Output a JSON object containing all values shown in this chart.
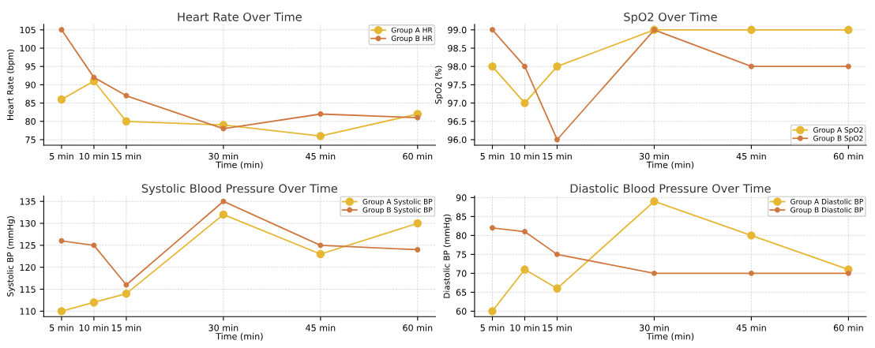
{
  "chart_data": [
    {
      "type": "line",
      "title": "Heart Rate Over Time",
      "xlabel": "Time (min)",
      "ylabel": "Heart Rate (bpm)",
      "x": [
        5,
        10,
        15,
        30,
        45,
        60
      ],
      "series": [
        {
          "name": "Group A HR",
          "color": "#e6b733",
          "values": [
            86,
            91,
            80,
            79,
            76,
            82
          ]
        },
        {
          "name": "Group B HR",
          "color": "#cf7840",
          "values": [
            105,
            92,
            87,
            78,
            82,
            81
          ]
        }
      ],
      "xlim": [
        2.25,
        62.75
      ],
      "xticks": [
        {
          "value": 5,
          "label": "5 min"
        },
        {
          "value": 10,
          "label": "10 min"
        },
        {
          "value": 15,
          "label": "15 min"
        },
        {
          "value": 30,
          "label": "30 min"
        },
        {
          "value": 45,
          "label": "45 min"
        },
        {
          "value": 60,
          "label": "60 min"
        }
      ],
      "ylim": [
        73.5,
        106.5
      ],
      "yticks": [
        75,
        80,
        85,
        90,
        95,
        100,
        105
      ],
      "grid": true,
      "legend": "top right",
      "marker": "circle",
      "line_style": "solid"
    },
    {
      "type": "line",
      "title": "SpO2 Over Time",
      "xlabel": "Time (min)",
      "ylabel": "SpO2 (%)",
      "x": [
        5,
        10,
        15,
        30,
        45,
        60
      ],
      "series": [
        {
          "name": "Group A SpO2",
          "color": "#e6b733",
          "values": [
            98.0,
            97.0,
            98.0,
            99.0,
            99.0,
            99.0
          ]
        },
        {
          "name": "Group B SpO2",
          "color": "#cf7840",
          "values": [
            99.0,
            98.0,
            96.0,
            99.0,
            98.0,
            98.0
          ]
        }
      ],
      "xlim": [
        2.25,
        62.75
      ],
      "xticks": [
        {
          "value": 5,
          "label": "5 min"
        },
        {
          "value": 10,
          "label": "10 min"
        },
        {
          "value": 15,
          "label": "15 min"
        },
        {
          "value": 30,
          "label": "30 min"
        },
        {
          "value": 45,
          "label": "45 min"
        },
        {
          "value": 60,
          "label": "60 min"
        }
      ],
      "ylim": [
        95.85,
        99.15
      ],
      "yticks": [
        {
          "value": 96,
          "label": "96.0"
        },
        {
          "value": 96.5,
          "label": "96.5"
        },
        {
          "value": 97,
          "label": "97.0"
        },
        {
          "value": 97.5,
          "label": "97.5"
        },
        {
          "value": 98,
          "label": "98.0"
        },
        {
          "value": 98.5,
          "label": "98.5"
        },
        {
          "value": 99,
          "label": "99.0"
        }
      ],
      "grid": true,
      "legend": "bottom right",
      "marker": "circle",
      "line_style": "solid"
    },
    {
      "type": "line",
      "title": "Systolic Blood Pressure Over Time",
      "xlabel": "Time (min)",
      "ylabel": "Systolic BP (mmHg)",
      "x": [
        5,
        10,
        15,
        30,
        45,
        60
      ],
      "series": [
        {
          "name": "Group A Systolic BP",
          "color": "#e6b733",
          "values": [
            110,
            112,
            114,
            132,
            123,
            130
          ]
        },
        {
          "name": "Group B Systolic BP",
          "color": "#cf7840",
          "values": [
            126,
            125,
            116,
            135,
            125,
            124
          ]
        }
      ],
      "xlim": [
        2.25,
        62.75
      ],
      "xticks": [
        {
          "value": 5,
          "label": "5 min"
        },
        {
          "value": 10,
          "label": "10 min"
        },
        {
          "value": 15,
          "label": "15 min"
        },
        {
          "value": 30,
          "label": "30 min"
        },
        {
          "value": 45,
          "label": "45 min"
        },
        {
          "value": 60,
          "label": "60 min"
        }
      ],
      "ylim": [
        108.75,
        136.25
      ],
      "yticks": [
        110,
        115,
        120,
        125,
        130,
        135
      ],
      "grid": true,
      "legend": "top right",
      "marker": "circle",
      "line_style": "solid"
    },
    {
      "type": "line",
      "title": "Diastolic Blood Pressure Over Time",
      "xlabel": "Time (min)",
      "ylabel": "Diastolic BP (mmHg)",
      "x": [
        5,
        10,
        15,
        30,
        45,
        60
      ],
      "series": [
        {
          "name": "Group A Diastolic BP",
          "color": "#e6b733",
          "values": [
            60,
            71,
            66,
            89,
            80,
            71
          ]
        },
        {
          "name": "Group B Diastolic BP",
          "color": "#cf7840",
          "values": [
            82,
            81,
            75,
            70,
            70,
            70
          ]
        }
      ],
      "xlim": [
        2.25,
        62.75
      ],
      "xticks": [
        {
          "value": 5,
          "label": "5 min"
        },
        {
          "value": 10,
          "label": "10 min"
        },
        {
          "value": 15,
          "label": "15 min"
        },
        {
          "value": 30,
          "label": "30 min"
        },
        {
          "value": 45,
          "label": "45 min"
        },
        {
          "value": 60,
          "label": "60 min"
        }
      ],
      "ylim": [
        58.55,
        90.45
      ],
      "yticks": [
        60,
        65,
        70,
        75,
        80,
        85,
        90
      ],
      "grid": true,
      "legend": "top right",
      "marker": "circle",
      "line_style": "solid"
    }
  ]
}
